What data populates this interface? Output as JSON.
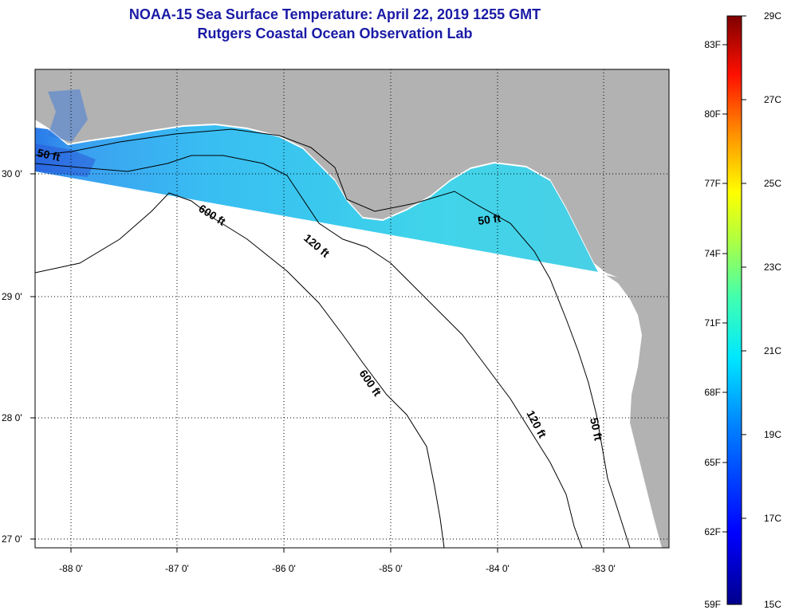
{
  "title": {
    "line1": "NOAA-15 Sea Surface Temperature:  April 22, 2019 1255 GMT",
    "line2": "Rutgers Coastal Ocean Observation Lab"
  },
  "map": {
    "lat_labels": [
      "30 0'",
      "29 0'",
      "28 0'",
      "27 0'"
    ],
    "lon_labels": [
      "-88 0'",
      "-87 0'",
      "-86 0'",
      "-85 0'",
      "-84 0'",
      "-83 0'"
    ],
    "lat_range": [
      26.98,
      30.86
    ],
    "lon_range": [
      -88.33,
      -82.42
    ],
    "contour_labels": {
      "c50_west": "50 ft",
      "c50_mid": "50 ft",
      "c50_south": "50 ft",
      "c120_north": "120 ft",
      "c120_south": "120 ft",
      "c600_north": "600 ft",
      "c600_south": "600 ft"
    },
    "colors": {
      "land": "#b2b2b2",
      "ocean_no_data": "#ffffff",
      "sst_band": "#33b8f0",
      "sst_band_warm": "#49d8e0"
    }
  },
  "colorbar": {
    "fahrenheit_labels": [
      "83F",
      "80F",
      "77F",
      "74F",
      "71F",
      "68F",
      "65F",
      "62F",
      "59F"
    ],
    "celsius_labels": [
      "29C",
      "27C",
      "25C",
      "23C",
      "21C",
      "19C",
      "17C",
      "15C"
    ],
    "range_c": [
      15,
      29
    ],
    "colors": [
      "#00008c",
      "#0000ff",
      "#0080ff",
      "#00ffff",
      "#80ff80",
      "#ffff00",
      "#ff8000",
      "#ff0000",
      "#800000"
    ]
  }
}
